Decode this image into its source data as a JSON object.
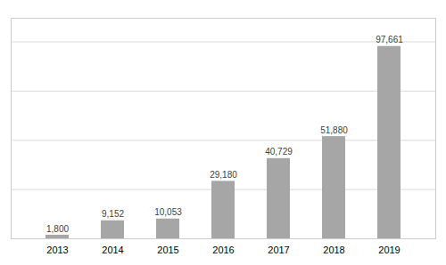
{
  "chart_data": {
    "type": "bar",
    "categories": [
      "2013",
      "2014",
      "2015",
      "2016",
      "2017",
      "2018",
      "2019"
    ],
    "values": [
      1800,
      9152,
      10053,
      29180,
      40729,
      51880,
      97661
    ],
    "value_labels": [
      "1,800",
      "9,152",
      "10,053",
      "29,180",
      "40,729",
      "51,880",
      "97,661"
    ],
    "data_labels": true,
    "color": "#a6a6a6",
    "ylim": [
      0,
      112000
    ],
    "yticks": [
      25000,
      50000,
      75000,
      100000
    ],
    "grid": true,
    "tick_labels": "x"
  }
}
